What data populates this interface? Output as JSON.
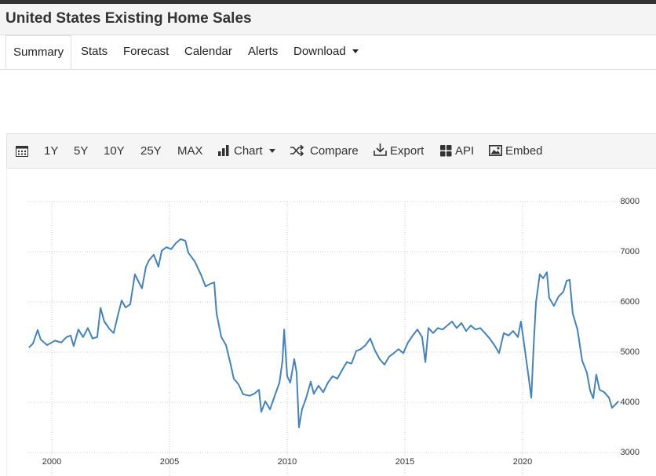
{
  "header": {
    "title": "United States Existing Home Sales"
  },
  "tabs": [
    "Summary",
    "Stats",
    "Forecast",
    "Calendar",
    "Alerts",
    "Download"
  ],
  "toolbar": [
    "1Y",
    "5Y",
    "10Y",
    "25Y",
    "MAX",
    "Chart",
    "Compare",
    "Export",
    "API",
    "Embed"
  ],
  "chart_data": {
    "type": "line",
    "color": "#4682b4",
    "x": [
      1999.03,
      1999.2,
      1999.4,
      1999.53,
      1999.8,
      2000,
      2000.13,
      2000.4,
      2000.63,
      2000.8,
      2000.93,
      2001.13,
      2001.33,
      2001.53,
      2001.73,
      2001.93,
      2002.07,
      2002.23,
      2002.47,
      2002.63,
      2002.8,
      2002.97,
      2003.13,
      2003.33,
      2003.53,
      2003.7,
      2003.83,
      2004,
      2004.13,
      2004.33,
      2004.53,
      2004.67,
      2004.87,
      2005.07,
      2005.27,
      2005.47,
      2005.67,
      2005.8,
      2006.07,
      2006.33,
      2006.53,
      2006.73,
      2006.9,
      2007,
      2007.2,
      2007.4,
      2007.6,
      2007.73,
      2007.93,
      2008.13,
      2008.4,
      2008.6,
      2008.8,
      2008.9,
      2009.07,
      2009.27,
      2009.47,
      2009.67,
      2009.8,
      2009.87,
      2010,
      2010.13,
      2010.3,
      2010.4,
      2010.5,
      2010.63,
      2010.8,
      2011,
      2011.13,
      2011.33,
      2011.53,
      2011.73,
      2011.93,
      2012.13,
      2012.33,
      2012.53,
      2012.73,
      2012.93,
      2013.13,
      2013.33,
      2013.53,
      2013.73,
      2013.93,
      2014.13,
      2014.33,
      2014.53,
      2014.73,
      2014.93,
      2015.13,
      2015.33,
      2015.53,
      2015.73,
      2015.87,
      2016,
      2016.2,
      2016.4,
      2016.6,
      2016.8,
      2017,
      2017.2,
      2017.4,
      2017.6,
      2017.8,
      2018,
      2018.2,
      2018.4,
      2018.6,
      2018.8,
      2019,
      2019.2,
      2019.4,
      2019.6,
      2019.8,
      2019.93,
      2020.07,
      2020.23,
      2020.37,
      2020.47,
      2020.57,
      2020.73,
      2020.87,
      2021.03,
      2021.13,
      2021.33,
      2021.53,
      2021.73,
      2021.87,
      2022,
      2022.13,
      2022.33,
      2022.53,
      2022.73,
      2022.87,
      2023,
      2023.13,
      2023.27,
      2023.47,
      2023.67,
      2023.8,
      2023.93,
      2024.07
    ],
    "values": [
      5090,
      5170,
      5440,
      5250,
      5140,
      5190,
      5230,
      5190,
      5300,
      5330,
      5120,
      5450,
      5300,
      5480,
      5270,
      5300,
      5880,
      5610,
      5450,
      5380,
      5720,
      6030,
      5890,
      5950,
      6550,
      6390,
      6270,
      6700,
      6830,
      6940,
      6700,
      7020,
      7090,
      7050,
      7170,
      7250,
      7220,
      6980,
      6810,
      6550,
      6310,
      6360,
      6390,
      5770,
      5300,
      5140,
      4750,
      4470,
      4360,
      4160,
      4130,
      4170,
      4250,
      3810,
      4020,
      3860,
      4130,
      4390,
      4830,
      5450,
      4520,
      4390,
      4860,
      4590,
      3500,
      3860,
      4080,
      4410,
      4170,
      4330,
      4200,
      4390,
      4520,
      4470,
      4640,
      4800,
      4770,
      5020,
      5060,
      5140,
      5270,
      5030,
      4860,
      4750,
      4910,
      4980,
      5060,
      4980,
      5190,
      5330,
      5450,
      5300,
      4800,
      5480,
      5380,
      5480,
      5450,
      5530,
      5610,
      5480,
      5580,
      5420,
      5530,
      5450,
      5480,
      5380,
      5270,
      5140,
      4980,
      5380,
      5330,
      5420,
      5300,
      5610,
      5140,
      4590,
      4090,
      5140,
      6000,
      6550,
      6470,
      6590,
      6080,
      5920,
      6110,
      6200,
      6420,
      6440,
      5770,
      5450,
      4830,
      4590,
      4230,
      4080,
      4550,
      4250,
      4200,
      4090,
      3890,
      3950,
      4020
    ],
    "xlim": [
      1999,
      2024.2
    ],
    "xticks": [
      2000,
      2005,
      2010,
      2015,
      2020
    ],
    "ylim": [
      3000,
      8000
    ],
    "yticks": [
      3000,
      4000,
      5000,
      6000,
      7000,
      8000
    ],
    "grid": true
  }
}
